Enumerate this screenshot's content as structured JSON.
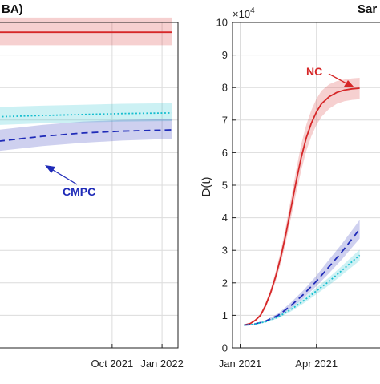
{
  "chart_data": [
    {
      "type": "line",
      "title": "BA)",
      "xlabel": "",
      "ylabel": "",
      "x_tick_labels": [
        "Oct 2021",
        "Jan 2022"
      ],
      "x_tick_values": [
        2021.75,
        2022.0
      ],
      "xlim": [
        2021.18,
        2022.08
      ],
      "ylim": [
        0,
        10
      ],
      "grid": true,
      "series": [
        {
          "color": "#d62728",
          "style": "solid",
          "x": [
            2021.18,
            2022.05
          ],
          "y": [
            9.7,
            9.7
          ],
          "band_lower": [
            9.3,
            9.3
          ],
          "band_upper": [
            10.15,
            10.15
          ]
        },
        {
          "color": "#17becf",
          "style": "dotted",
          "x": [
            2021.18,
            2021.4,
            2021.6,
            2021.8,
            2022.05
          ],
          "y": [
            7.1,
            7.14,
            7.17,
            7.2,
            7.22
          ],
          "band_lower": [
            6.85,
            6.9,
            6.93,
            6.95,
            6.97
          ],
          "band_upper": [
            7.4,
            7.44,
            7.47,
            7.5,
            7.52
          ]
        },
        {
          "color": "#1f2bb8",
          "style": "dashed",
          "name": "CMPC",
          "x": [
            2021.18,
            2021.4,
            2021.6,
            2021.8,
            2022.05
          ],
          "y": [
            6.35,
            6.5,
            6.6,
            6.66,
            6.7
          ],
          "band_lower": [
            6.05,
            6.2,
            6.3,
            6.37,
            6.42
          ],
          "band_upper": [
            6.7,
            6.85,
            6.95,
            7.0,
            7.03
          ]
        }
      ],
      "annotations": [
        {
          "text": "CMPC",
          "color": "#1f2bb8"
        }
      ]
    },
    {
      "type": "line",
      "title": "Sar",
      "xlabel": "",
      "ylabel": "D(t)",
      "y_exponent_label": "×10",
      "y_exponent_power": "4",
      "y_tick_labels": [
        "0",
        "1",
        "2",
        "3",
        "4",
        "5",
        "6",
        "7",
        "8",
        "9",
        "10"
      ],
      "x_tick_labels": [
        "Jan 2021",
        "Apr 2021"
      ],
      "x_tick_values": [
        0,
        3
      ],
      "xlim": [
        -0.3,
        5.5
      ],
      "ylim": [
        0,
        10
      ],
      "grid": true,
      "series": [
        {
          "name": "NC",
          "color": "#d62728",
          "style": "solid",
          "x": [
            0.15,
            0.4,
            0.6,
            0.8,
            1.0,
            1.2,
            1.4,
            1.6,
            1.8,
            2.0,
            2.2,
            2.4,
            2.6,
            2.8,
            3.0,
            3.2,
            3.5,
            3.8,
            4.1,
            4.4,
            4.7
          ],
          "y": [
            0.7,
            0.75,
            0.85,
            1.0,
            1.3,
            1.7,
            2.2,
            2.8,
            3.5,
            4.3,
            5.1,
            5.85,
            6.45,
            6.9,
            7.25,
            7.5,
            7.72,
            7.85,
            7.92,
            7.96,
            7.98
          ],
          "band_lower": [
            0.7,
            0.75,
            0.82,
            0.95,
            1.22,
            1.6,
            2.05,
            2.6,
            3.25,
            4.0,
            4.75,
            5.45,
            6.05,
            6.5,
            6.85,
            7.1,
            7.35,
            7.5,
            7.58,
            7.62,
            7.64
          ],
          "band_upper": [
            0.7,
            0.75,
            0.88,
            1.05,
            1.38,
            1.8,
            2.35,
            3.0,
            3.75,
            4.6,
            5.45,
            6.25,
            6.85,
            7.3,
            7.65,
            7.9,
            8.1,
            8.2,
            8.25,
            8.28,
            8.3
          ]
        },
        {
          "color": "#1f2bb8",
          "style": "dashed",
          "x": [
            0.15,
            0.5,
            1.0,
            1.5,
            2.0,
            2.5,
            3.0,
            3.5,
            4.0,
            4.5,
            4.7
          ],
          "y": [
            0.7,
            0.72,
            0.82,
            1.0,
            1.3,
            1.65,
            2.05,
            2.5,
            2.95,
            3.45,
            3.65
          ],
          "band_lower": [
            0.7,
            0.71,
            0.79,
            0.95,
            1.22,
            1.53,
            1.9,
            2.3,
            2.72,
            3.18,
            3.36
          ],
          "band_upper": [
            0.7,
            0.73,
            0.85,
            1.06,
            1.4,
            1.78,
            2.22,
            2.72,
            3.2,
            3.72,
            3.93
          ]
        },
        {
          "color": "#17becf",
          "style": "dotted",
          "x": [
            0.15,
            0.5,
            1.0,
            1.5,
            2.0,
            2.5,
            3.0,
            3.5,
            4.0,
            4.5,
            4.7
          ],
          "y": [
            0.7,
            0.72,
            0.8,
            0.95,
            1.18,
            1.45,
            1.75,
            2.05,
            2.38,
            2.72,
            2.85
          ],
          "band_lower": [
            0.7,
            0.71,
            0.78,
            0.91,
            1.12,
            1.37,
            1.65,
            1.93,
            2.24,
            2.56,
            2.68
          ],
          "band_upper": [
            0.7,
            0.73,
            0.82,
            0.99,
            1.24,
            1.53,
            1.85,
            2.17,
            2.52,
            2.88,
            3.02
          ]
        }
      ],
      "annotations": [
        {
          "text": "NC",
          "color": "#d62728"
        }
      ]
    }
  ]
}
